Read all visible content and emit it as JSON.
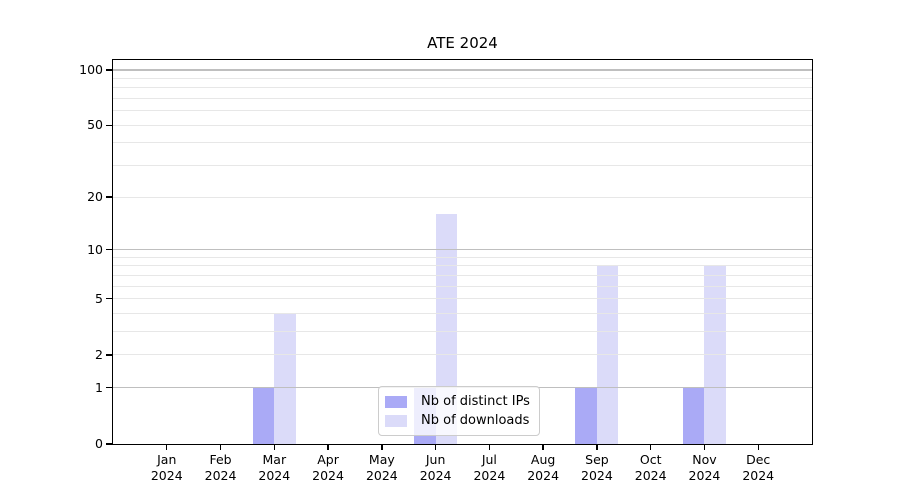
{
  "chart_data": {
    "type": "bar",
    "title": "ATE 2024",
    "year_label": "2024",
    "months": [
      "Jan",
      "Feb",
      "Mar",
      "Apr",
      "May",
      "Jun",
      "Jul",
      "Aug",
      "Sep",
      "Oct",
      "Nov",
      "Dec"
    ],
    "series": [
      {
        "key": "distinct-ips",
        "name": "Nb of distinct IPs",
        "color": "#aaaaf6",
        "values": [
          0,
          0,
          1,
          0,
          0,
          1,
          0,
          0,
          1,
          0,
          1,
          0
        ]
      },
      {
        "key": "downloads",
        "name": "Nb of downloads",
        "color": "#dbdbf9",
        "values": [
          0,
          0,
          4,
          0,
          0,
          16,
          0,
          0,
          8,
          0,
          8,
          0
        ]
      }
    ],
    "yscale": "log1p",
    "ylim": [
      0,
      113
    ],
    "y_tick_values": [
      0,
      1,
      2,
      5,
      10,
      20,
      50,
      100
    ],
    "y_tick_labels": [
      "0",
      "1",
      "2",
      "5",
      "10",
      "20",
      "50",
      "100"
    ],
    "y_major_gridlines": [
      1,
      10,
      100
    ],
    "y_minor_gridlines": [
      2,
      3,
      4,
      5,
      6,
      7,
      8,
      9,
      20,
      30,
      40,
      50,
      60,
      70,
      80,
      90
    ],
    "grid": true,
    "legend_position": "lower center"
  },
  "colors": {
    "background": "#ffffff",
    "spine": "#000000",
    "text": "#000000",
    "grid_major": "#bfbfbf",
    "grid_minor": "#e7e7e7",
    "legend_border": "#cccccc",
    "legend_background": "rgba(255,255,255,0.8)"
  }
}
